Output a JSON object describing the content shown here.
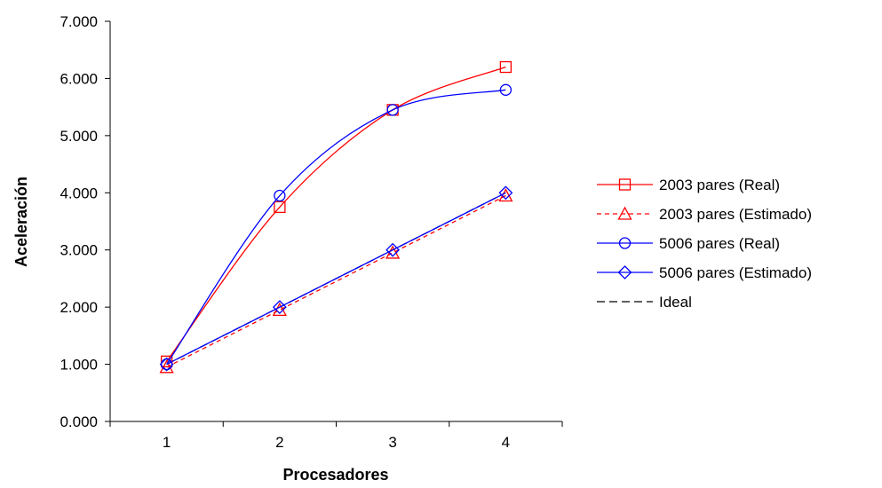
{
  "chart_data": {
    "type": "line",
    "title": "",
    "xlabel": "Procesadores",
    "ylabel": "Aceleración",
    "categories": [
      "1",
      "2",
      "3",
      "4"
    ],
    "x": [
      1,
      2,
      3,
      4
    ],
    "xlim": [
      0.5,
      4.5
    ],
    "ylim": [
      0,
      7
    ],
    "y_tick_values": [
      0,
      1,
      2,
      3,
      4,
      5,
      6,
      7
    ],
    "y_tick_labels": [
      "0.000",
      "1.000",
      "2.000",
      "3.000",
      "4.000",
      "5.000",
      "6.000",
      "7.000"
    ],
    "grid": false,
    "legend_position": "right",
    "series": [
      {
        "name": "2003 pares (Real)",
        "values": [
          1.05,
          3.75,
          5.45,
          6.2
        ],
        "color": "#ff0000",
        "dash": "solid",
        "marker": "square",
        "smooth": true
      },
      {
        "name": "2003 pares (Estimado)",
        "values": [
          0.95,
          1.95,
          2.95,
          3.95
        ],
        "color": "#ff0000",
        "dash": "dashed",
        "marker": "triangle",
        "smooth": false
      },
      {
        "name": "5006 pares (Real)",
        "values": [
          1.0,
          3.95,
          5.45,
          5.8
        ],
        "color": "#0000ff",
        "dash": "solid",
        "marker": "circle",
        "smooth": true
      },
      {
        "name": "5006 pares (Estimado)",
        "values": [
          1.0,
          2.0,
          3.0,
          4.0
        ],
        "color": "#0000ff",
        "dash": "solid",
        "marker": "diamond",
        "smooth": false
      },
      {
        "name": "Ideal",
        "values": [
          1,
          2,
          3,
          4
        ],
        "color": "#000000",
        "dash": "dashed",
        "marker": "none",
        "smooth": false
      }
    ]
  }
}
